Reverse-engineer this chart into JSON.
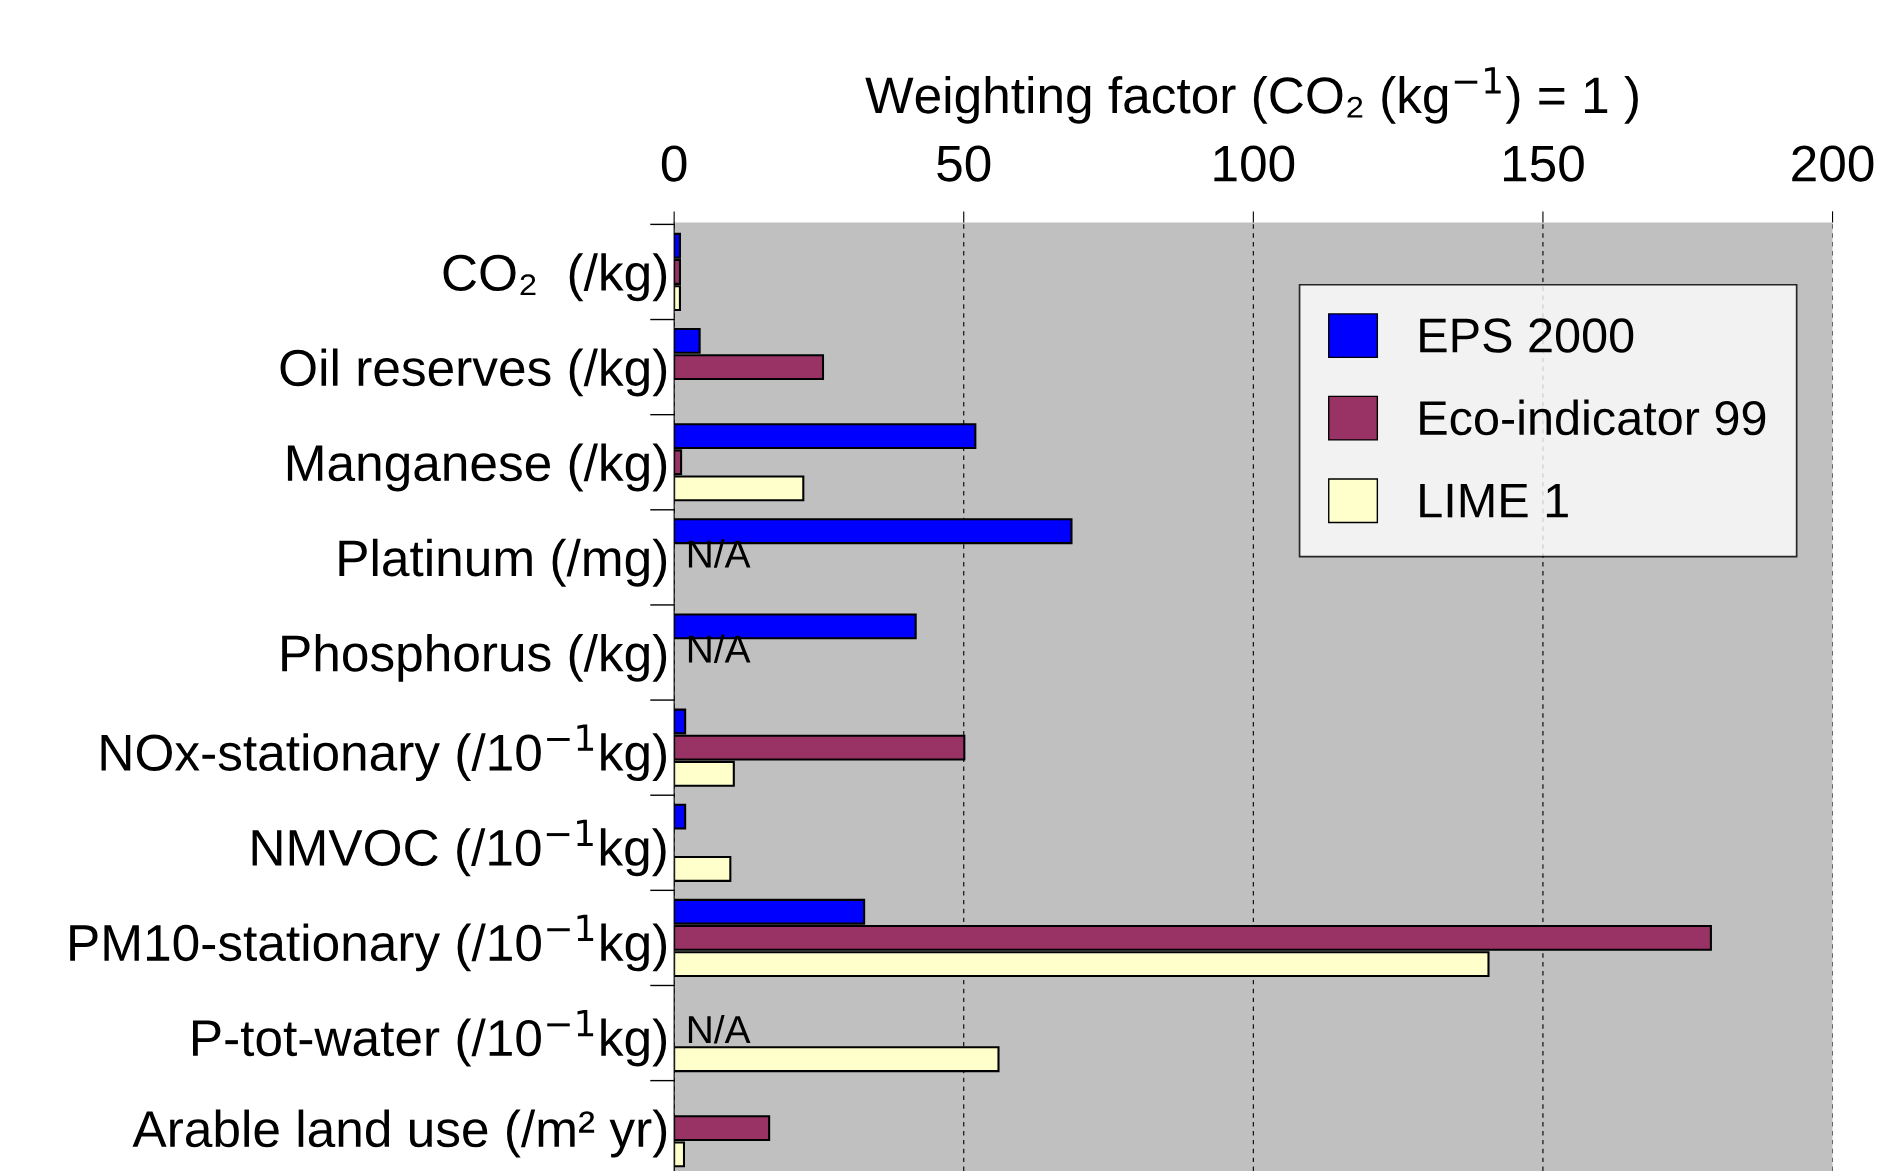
{
  "chart_data": {
    "type": "bar",
    "orientation": "horizontal",
    "xlabel": "Weighting factor (CO₂ (kg$^{−1}$) = 1 )",
    "categories": [
      "CO₂  (/kg)",
      "Oil reserves (/kg)",
      "Manganese (/kg)",
      "Platinum (/mg)",
      "Phosphorus (/kg)",
      "NOx-stationary (/10$^{−1}$kg)",
      "NMVOC (/10$^{−1}$kg)",
      "PM10-stationary (/10$^{−1}$kg)",
      "P-tot-water (/10$^{−1}$kg)",
      "Arable land use (/m² yr)"
    ],
    "series": [
      {
        "name": "EPS 2000",
        "color": "#0000ff",
        "values": [
          1,
          4.4,
          52,
          68.6,
          41.7,
          1.9,
          1.9,
          32.8,
          null,
          null
        ]
      },
      {
        "name": "Eco-indicator 99",
        "color": "#993366",
        "values": [
          1,
          25.7,
          1.2,
          null,
          null,
          50.1,
          null,
          179,
          null,
          16.4
        ]
      },
      {
        "name": "LIME 1",
        "color": "#ffffcc",
        "values": [
          1,
          null,
          22.3,
          null,
          null,
          10.3,
          9.7,
          140.6,
          56,
          1.7
        ]
      }
    ],
    "xlim": [
      0,
      200
    ],
    "xticks": [
      0,
      50,
      100,
      150,
      200
    ],
    "grid": "x",
    "legend": "top right",
    "annotations": [
      "N/A",
      "N/A",
      "N/A"
    ]
  }
}
